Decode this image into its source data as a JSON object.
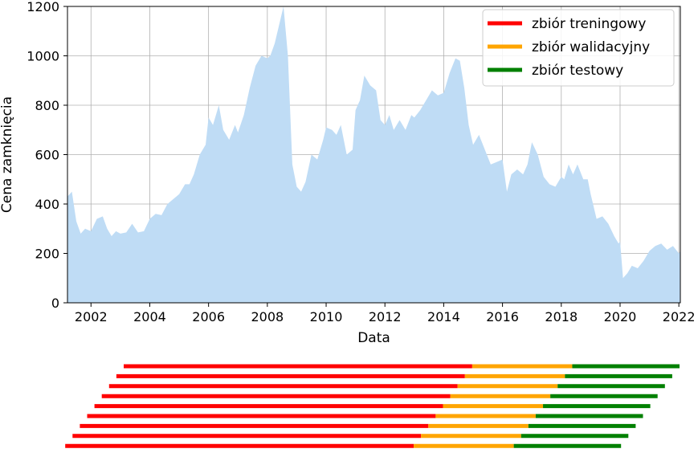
{
  "chart_data": [
    {
      "type": "area",
      "xlabel": "Data",
      "ylabel": "Cena zamknięcia",
      "xlim": [
        2001.2,
        2022.05
      ],
      "ylim": [
        0,
        1200
      ],
      "grid": true,
      "x_ticks": [
        2002,
        2004,
        2006,
        2008,
        2010,
        2012,
        2014,
        2016,
        2018,
        2020,
        2022
      ],
      "x_tick_labels": [
        "2002",
        "2004",
        "2006",
        "2008",
        "2010",
        "2012",
        "2014",
        "2016",
        "2018",
        "2020",
        "2022"
      ],
      "y_ticks": [
        0,
        200,
        400,
        600,
        800,
        1000,
        1200
      ],
      "y_tick_labels": [
        "0",
        "200",
        "400",
        "600",
        "800",
        "1000",
        "1200"
      ],
      "fill_color": "#bfdcf5",
      "legend": {
        "position": "top-right",
        "entries": [
          {
            "label": "zbiór treningowy",
            "color": "#ff0000"
          },
          {
            "label": "zbiór walidacyjny",
            "color": "#ffa500"
          },
          {
            "label": "zbiór testowy",
            "color": "#008000"
          }
        ]
      },
      "x": [
        2001.2,
        2001.35,
        2001.5,
        2001.65,
        2001.8,
        2002.0,
        2002.2,
        2002.4,
        2002.55,
        2002.7,
        2002.85,
        2003.0,
        2003.2,
        2003.4,
        2003.6,
        2003.8,
        2004.0,
        2004.2,
        2004.4,
        2004.6,
        2004.8,
        2005.0,
        2005.2,
        2005.35,
        2005.5,
        2005.7,
        2005.9,
        2006.0,
        2006.15,
        2006.35,
        2006.5,
        2006.7,
        2006.9,
        2007.0,
        2007.2,
        2007.4,
        2007.6,
        2007.8,
        2008.0,
        2008.1,
        2008.25,
        2008.45,
        2008.55,
        2008.7,
        2008.85,
        2009.0,
        2009.15,
        2009.3,
        2009.5,
        2009.7,
        2009.9,
        2010.0,
        2010.2,
        2010.35,
        2010.5,
        2010.7,
        2010.9,
        2011.0,
        2011.15,
        2011.3,
        2011.5,
        2011.7,
        2011.85,
        2012.0,
        2012.15,
        2012.3,
        2012.5,
        2012.7,
        2012.9,
        2013.0,
        2013.2,
        2013.4,
        2013.6,
        2013.8,
        2014.0,
        2014.2,
        2014.4,
        2014.55,
        2014.7,
        2014.85,
        2015.0,
        2015.2,
        2015.4,
        2015.6,
        2015.8,
        2016.0,
        2016.15,
        2016.3,
        2016.5,
        2016.7,
        2016.85,
        2017.0,
        2017.2,
        2017.4,
        2017.6,
        2017.8,
        2018.0,
        2018.1,
        2018.25,
        2018.4,
        2018.55,
        2018.75,
        2018.9,
        2019.0,
        2019.2,
        2019.4,
        2019.6,
        2019.8,
        2019.95,
        2020.0,
        2020.1,
        2020.25,
        2020.4,
        2020.6,
        2020.8,
        2021.0,
        2021.2,
        2021.4,
        2021.6,
        2021.8,
        2022.0,
        2022.05
      ],
      "y": [
        430,
        450,
        330,
        280,
        300,
        290,
        340,
        350,
        300,
        270,
        290,
        280,
        285,
        320,
        285,
        290,
        340,
        360,
        355,
        400,
        420,
        440,
        480,
        480,
        520,
        600,
        640,
        750,
        720,
        800,
        700,
        660,
        720,
        690,
        760,
        870,
        960,
        1000,
        990,
        1000,
        1050,
        1150,
        1200,
        1000,
        560,
        470,
        450,
        490,
        600,
        580,
        660,
        710,
        700,
        680,
        720,
        600,
        620,
        780,
        820,
        920,
        880,
        860,
        740,
        720,
        760,
        700,
        740,
        700,
        760,
        750,
        780,
        820,
        860,
        840,
        850,
        930,
        990,
        980,
        870,
        720,
        640,
        680,
        620,
        560,
        570,
        580,
        450,
        520,
        540,
        520,
        560,
        650,
        600,
        510,
        480,
        470,
        510,
        500,
        560,
        520,
        560,
        500,
        500,
        440,
        340,
        350,
        320,
        270,
        240,
        250,
        100,
        120,
        150,
        140,
        170,
        210,
        230,
        240,
        215,
        230,
        200,
        210
      ]
    },
    {
      "type": "bar",
      "orientation": "horizontal",
      "segments": [
        "zbiór treningowy",
        "zbiór walidacyjny",
        "zbiór testowy"
      ],
      "colors": [
        "#ff0000",
        "#ffa500",
        "#008000"
      ],
      "series": [
        {
          "values": [
            0.0,
            0.627,
            0.807,
            0.908
          ]
        },
        {
          "values": [
            0.0,
            0.627,
            0.807,
            0.908
          ]
        },
        {
          "values": [
            0.0,
            0.627,
            0.807,
            0.908
          ]
        },
        {
          "values": [
            0.0,
            0.627,
            0.807,
            0.908
          ]
        },
        {
          "values": [
            0.0,
            0.627,
            0.807,
            0.908
          ]
        },
        {
          "values": [
            0.0,
            0.627,
            0.807,
            0.908
          ]
        },
        {
          "values": [
            0.0,
            0.627,
            0.807,
            0.908
          ]
        },
        {
          "values": [
            0.0,
            0.627,
            0.807,
            0.908
          ]
        },
        {
          "values": [
            0.0,
            0.627,
            0.807,
            0.908
          ]
        }
      ]
    }
  ]
}
